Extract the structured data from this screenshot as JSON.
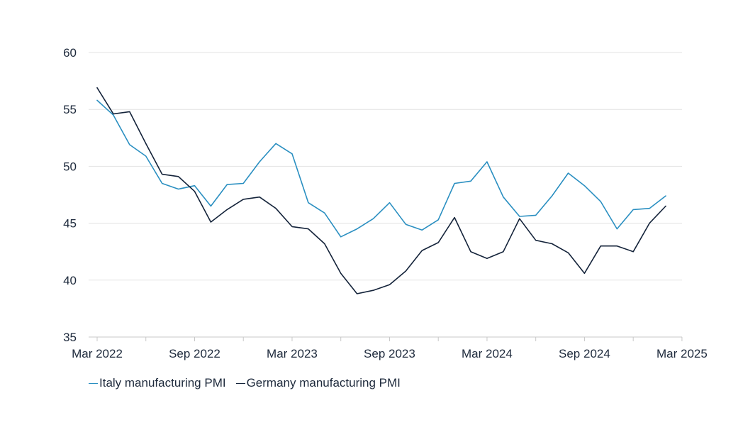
{
  "chart_data": {
    "type": "line",
    "title": "",
    "xlabel": "",
    "ylabel": "",
    "ylim": [
      35,
      60
    ],
    "yticks": [
      35,
      40,
      45,
      50,
      55,
      60
    ],
    "xticks": [
      "Mar 2022",
      "Sep 2022",
      "Mar 2023",
      "Sep 2023",
      "Mar 2024",
      "Sep 2024",
      "Mar 2025"
    ],
    "x": [
      "2022-03",
      "2022-04",
      "2022-05",
      "2022-06",
      "2022-07",
      "2022-08",
      "2022-09",
      "2022-10",
      "2022-11",
      "2022-12",
      "2023-01",
      "2023-02",
      "2023-03",
      "2023-04",
      "2023-05",
      "2023-06",
      "2023-07",
      "2023-08",
      "2023-09",
      "2023-10",
      "2023-11",
      "2023-12",
      "2024-01",
      "2024-02",
      "2024-03",
      "2024-04",
      "2024-05",
      "2024-06",
      "2024-07",
      "2024-08",
      "2024-09",
      "2024-10",
      "2024-11",
      "2024-12",
      "2025-01",
      "2025-02"
    ],
    "grid": true,
    "legend_position": "bottom-left",
    "series": [
      {
        "name": "Italy manufacturing PMI",
        "color": "#2a8fc1",
        "values": [
          55.8,
          54.5,
          51.9,
          50.9,
          48.5,
          48.0,
          48.3,
          46.5,
          48.4,
          48.5,
          50.4,
          52.0,
          51.1,
          46.8,
          45.9,
          43.8,
          44.5,
          45.4,
          46.8,
          44.9,
          44.4,
          45.3,
          48.5,
          48.7,
          50.4,
          47.3,
          45.6,
          45.7,
          47.4,
          49.4,
          48.3,
          46.9,
          44.5,
          46.2,
          46.3,
          47.4
        ]
      },
      {
        "name": "Germany manufacturing PMI",
        "color": "#14233a",
        "values": [
          56.9,
          54.6,
          54.8,
          52.0,
          49.3,
          49.1,
          47.8,
          45.1,
          46.2,
          47.1,
          47.3,
          46.3,
          44.7,
          44.5,
          43.2,
          40.6,
          38.8,
          39.1,
          39.6,
          40.8,
          42.6,
          43.3,
          45.5,
          42.5,
          41.9,
          42.5,
          45.4,
          43.5,
          43.2,
          42.4,
          40.6,
          43.0,
          43.0,
          42.5,
          45.0,
          46.5
        ]
      }
    ]
  }
}
